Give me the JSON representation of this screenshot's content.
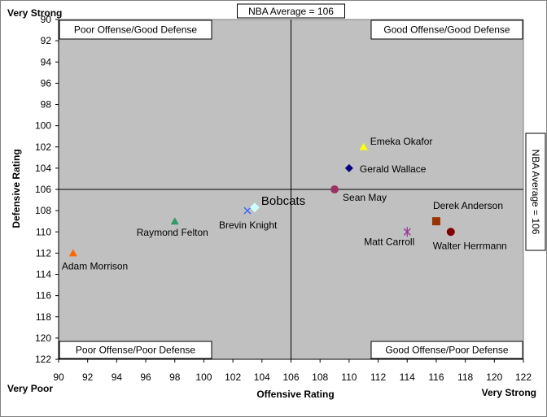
{
  "chart_data": {
    "type": "scatter",
    "xlabel": "Offensive Rating",
    "ylabel": "Defensive Rating",
    "xlim": [
      90,
      122
    ],
    "ylim": [
      90,
      122
    ],
    "y_inverted": true,
    "x_ticks": [
      90,
      92,
      94,
      96,
      98,
      100,
      102,
      104,
      106,
      108,
      110,
      112,
      114,
      116,
      118,
      120,
      122
    ],
    "y_ticks": [
      90,
      92,
      94,
      96,
      98,
      100,
      102,
      104,
      106,
      108,
      110,
      112,
      114,
      116,
      118,
      120,
      122
    ],
    "plot_background": "#c0c0c0",
    "grid": false,
    "corner_labels": {
      "x_low": "Very Poor",
      "x_high": "Very Strong",
      "y_top": "Very Strong"
    },
    "reference_lines": [
      {
        "axis": "x",
        "value": 106,
        "label": "NBA Average = 106"
      },
      {
        "axis": "y",
        "value": 106,
        "label": "NBA Average = 106"
      }
    ],
    "quadrant_labels": {
      "top_left": "Poor Offense/Good Defense",
      "top_right": "Good Offense/Good Defense",
      "bottom_left": "Poor Offense/Poor Defense",
      "bottom_right": "Good Offense/Poor Defense"
    },
    "series": [
      {
        "name": "Adam Morrison",
        "x": 91,
        "y": 112,
        "marker": "triangle",
        "color": "#ff6600"
      },
      {
        "name": "Raymond Felton",
        "x": 98,
        "y": 109,
        "marker": "triangle",
        "color": "#339966"
      },
      {
        "name": "Brevin Knight",
        "x": 103,
        "y": 108,
        "marker": "x",
        "color": "#3366ff"
      },
      {
        "name": "Bobcats",
        "x": 103.5,
        "y": 107.7,
        "marker": "diamond",
        "color": "#ccffff"
      },
      {
        "name": "Sean May",
        "x": 109,
        "y": 106,
        "marker": "circle",
        "color": "#993366"
      },
      {
        "name": "Gerald Wallace",
        "x": 110,
        "y": 104,
        "marker": "diamond",
        "color": "#000080"
      },
      {
        "name": "Emeka Okafor",
        "x": 111,
        "y": 102,
        "marker": "triangle",
        "color": "#ffff00"
      },
      {
        "name": "Matt Carroll",
        "x": 114,
        "y": 110,
        "marker": "star",
        "color": "#993399"
      },
      {
        "name": "Derek Anderson",
        "x": 116,
        "y": 109,
        "marker": "square",
        "color": "#993300"
      },
      {
        "name": "Walter Herrmann",
        "x": 117,
        "y": 110,
        "marker": "circle",
        "color": "#800000"
      }
    ]
  }
}
